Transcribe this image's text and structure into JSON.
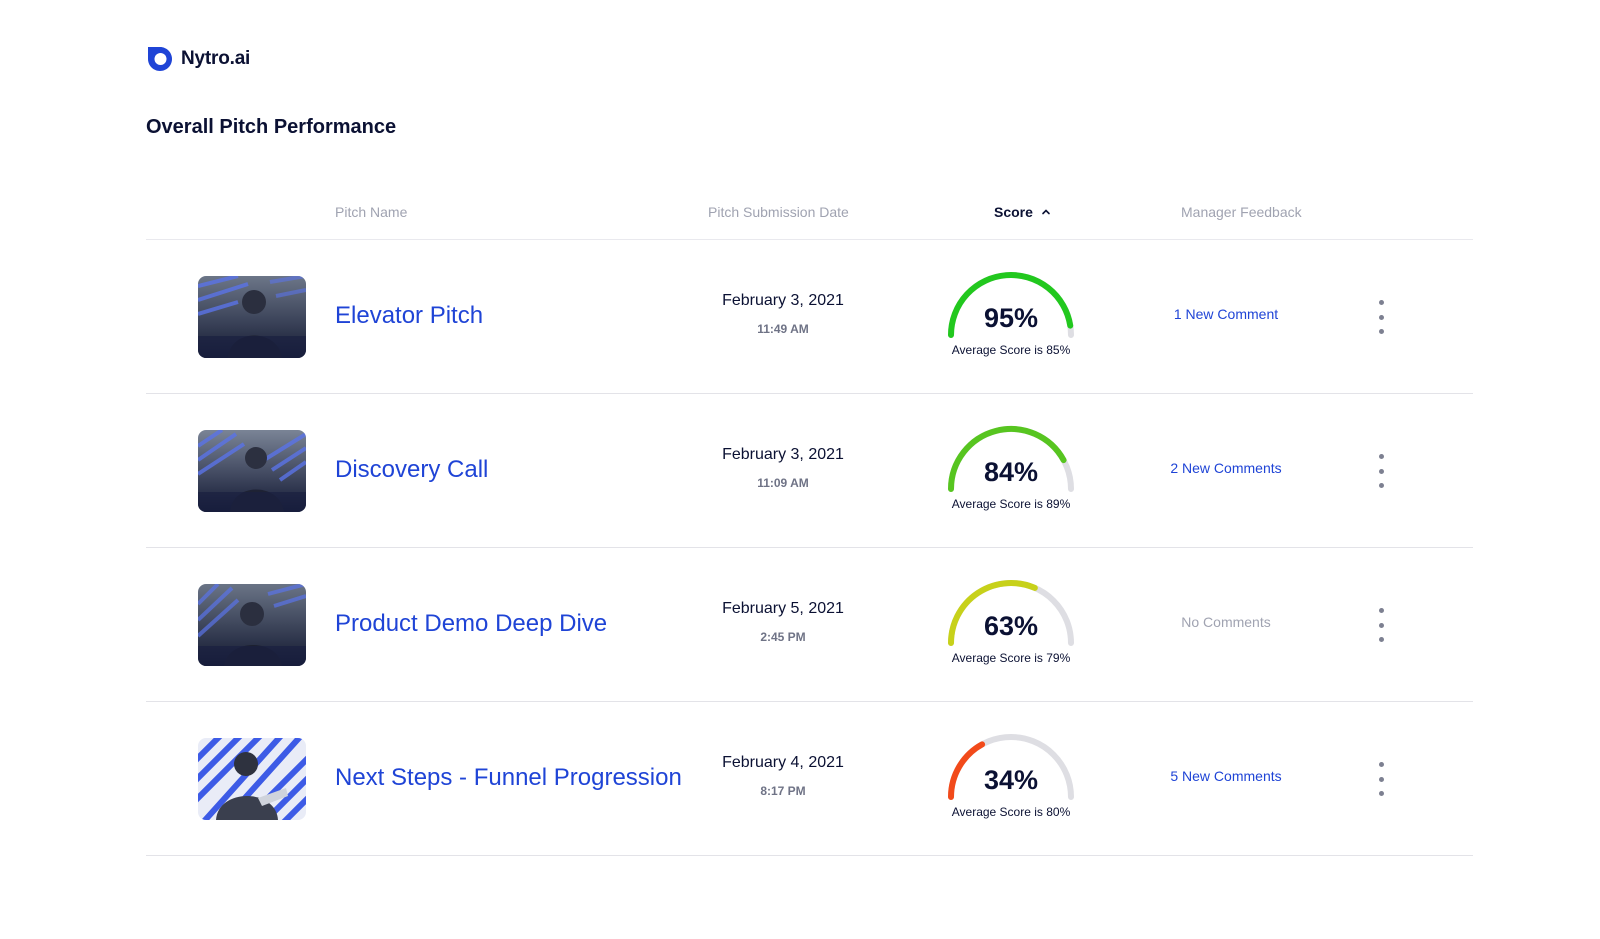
{
  "brand": {
    "name": "Nytro.ai",
    "icon": "nytro-logo-icon",
    "color": "#1f44d6"
  },
  "page_title": "Overall Pitch Performance",
  "table": {
    "columns": {
      "pitch_name": "Pitch Name",
      "submission_date": "Pitch Submission Date",
      "score": "Score",
      "manager_feedback": "Manager Feedback"
    },
    "sort_icon": "chevron-up-icon",
    "rows": [
      {
        "name": "Elevator Pitch",
        "date": "February 3, 2021",
        "time": "11:49 AM",
        "score": 95,
        "score_label": "95%",
        "avg_label": "Average Score is 85%",
        "gauge_color": "#22c81e",
        "feedback": "1 New Comment",
        "feedback_muted": false,
        "thumb": "man-with-headset-thumbnail"
      },
      {
        "name": "Discovery Call",
        "date": "February 3, 2021",
        "time": "11:09 AM",
        "score": 84,
        "score_label": "84%",
        "avg_label": "Average Score is 89%",
        "gauge_color": "#57c520",
        "feedback": "2 New Comments",
        "feedback_muted": false,
        "thumb": "woman-with-headset-thumbnail"
      },
      {
        "name": "Product Demo Deep Dive",
        "date": "February 5, 2021",
        "time": "2:45 PM",
        "score": 63,
        "score_label": "63%",
        "avg_label": "Average Score is 79%",
        "gauge_color": "#c7d11a",
        "feedback": "No Comments",
        "feedback_muted": true,
        "thumb": "man-smiling-thumbnail"
      },
      {
        "name": "Next Steps - Funnel Progression",
        "date": "February 4, 2021",
        "time": "8:17 PM",
        "score": 34,
        "score_label": "34%",
        "avg_label": "Average Score is 80%",
        "gauge_color": "#f24a1a",
        "feedback": "5 New Comments",
        "feedback_muted": false,
        "thumb": "man-gesturing-thumbnail"
      }
    ]
  },
  "row_menu_icon": "more-vertical-icon"
}
